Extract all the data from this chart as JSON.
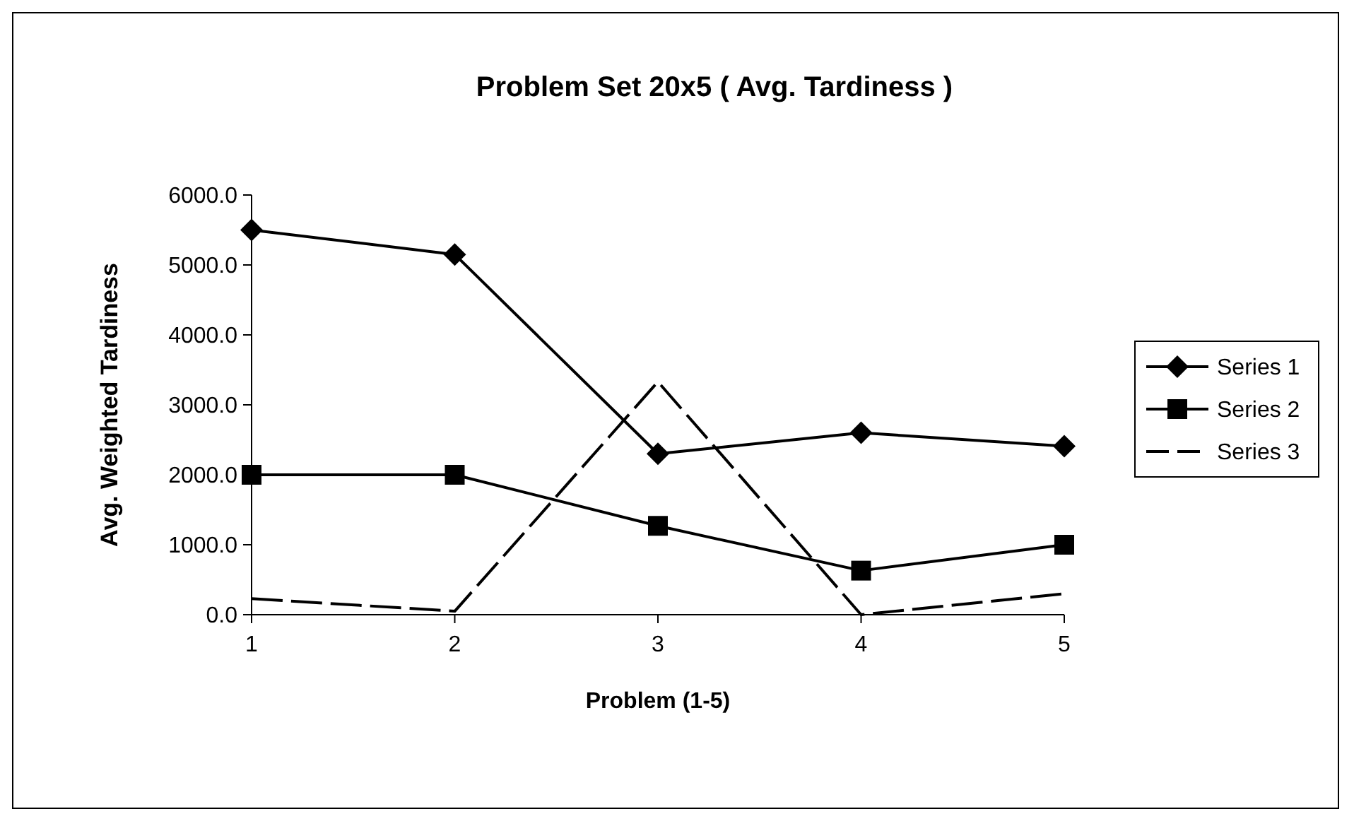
{
  "chart_data": {
    "type": "line",
    "title": "Problem Set 20x5 ( Avg. Tardiness )",
    "xlabel": "Problem (1-5)",
    "ylabel": "Avg. Weighted Tardiness",
    "categories": [
      "1",
      "2",
      "3",
      "4",
      "5"
    ],
    "series": [
      {
        "name": "Series 1",
        "color": "#000000",
        "marker": "diamond",
        "values": [
          5500,
          5150,
          2300,
          2600,
          2410
        ]
      },
      {
        "name": "Series 2",
        "color": "#000000",
        "marker": "square",
        "values": [
          2000,
          2000,
          1270,
          630,
          1000
        ]
      },
      {
        "name": "Series 3",
        "color": "#000000",
        "marker": "none",
        "line_style": "dashed",
        "values": [
          230,
          50,
          3330,
          0,
          300
        ]
      }
    ],
    "ylim": [
      0,
      6000
    ],
    "yticks": [
      {
        "value": 0,
        "label": "0.0"
      },
      {
        "value": 1000,
        "label": "1000.0"
      },
      {
        "value": 2000,
        "label": "2000.0"
      },
      {
        "value": 3000,
        "label": "3000.0"
      },
      {
        "value": 4000,
        "label": "4000.0"
      },
      {
        "value": 5000,
        "label": "5000.0"
      },
      {
        "value": 6000,
        "label": "6000.0"
      }
    ],
    "grid": false,
    "legend": "right"
  }
}
